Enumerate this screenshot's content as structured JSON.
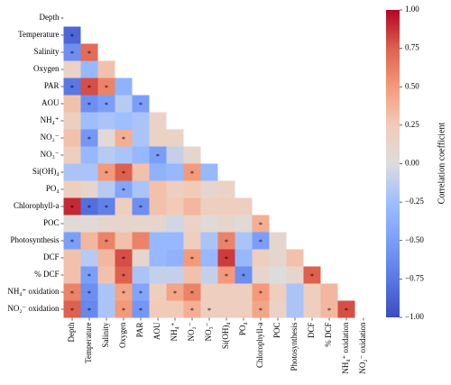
{
  "chart_data": {
    "type": "heatmap",
    "categories": [
      "Depth",
      "Temperature",
      "Salinity",
      "Oxygen",
      "PAR",
      "AOU",
      "NH₄⁺",
      "NO₂⁻",
      "NO₃⁻",
      "Si(OH)₄",
      "PO₄",
      "Chlorophyll-a",
      "POC",
      "Photosynthesis",
      "DCF",
      "% DCF",
      "NH₄⁺ oxidation",
      "NO₂⁻ oxidation"
    ],
    "values": [
      [],
      [
        -0.85
      ],
      [
        -0.6,
        0.7
      ],
      [
        0.15,
        -0.3,
        0.3
      ],
      [
        -0.75,
        0.8,
        0.6,
        -0.35
      ],
      [
        0.3,
        -0.6,
        -0.5,
        -0.15,
        -0.5
      ],
      [
        0.2,
        -0.25,
        -0.2,
        -0.25,
        -0.2,
        0.15
      ],
      [
        0.3,
        -0.55,
        0.05,
        0.4,
        -0.2,
        0.15,
        0.15
      ],
      [
        0.2,
        -0.3,
        -0.15,
        -0.2,
        -0.3,
        -0.5,
        -0.1,
        0.1
      ],
      [
        -0.2,
        -0.2,
        0.5,
        0.75,
        0.3,
        -0.35,
        -0.3,
        0.5,
        -0.3
      ],
      [
        0.2,
        0.1,
        -0.15,
        -0.45,
        -0.2,
        0.3,
        0.2,
        0.25,
        0.1,
        0.15
      ],
      [
        0.9,
        -0.8,
        -0.7,
        0.2,
        -0.6,
        0.3,
        0.25,
        0.35,
        0.2,
        0.2,
        0.2
      ],
      [
        0.05,
        0.05,
        0.1,
        0.1,
        0.1,
        0.1,
        -0.05,
        0.15,
        0.05,
        0.1,
        0.05,
        0.4
      ],
      [
        -0.5,
        0.35,
        0.6,
        0.3,
        0.6,
        -0.3,
        -0.3,
        0.2,
        -0.2,
        0.6,
        -0.2,
        -0.5,
        0.1
      ],
      [
        0.3,
        -0.15,
        0.35,
        0.8,
        0.1,
        -0.3,
        -0.35,
        0.5,
        -0.3,
        0.85,
        -0.3,
        0.2,
        0.1,
        0.3
      ],
      [
        0.3,
        -0.5,
        0.3,
        0.75,
        -0.2,
        -0.1,
        -0.1,
        0.3,
        -0.1,
        0.5,
        -0.6,
        0.1,
        0.0,
        0.1,
        0.75
      ],
      [
        0.6,
        -0.6,
        -0.2,
        0.45,
        -0.45,
        0.2,
        0.45,
        0.6,
        0.2,
        0.2,
        0.2,
        0.5,
        0.2,
        -0.2,
        0.2,
        0.35
      ],
      [
        0.75,
        -0.65,
        -0.2,
        0.5,
        -0.55,
        0.25,
        0.25,
        0.4,
        0.2,
        0.2,
        0.2,
        0.45,
        0.15,
        -0.2,
        0.2,
        0.35,
        0.8
      ]
    ],
    "significant": [
      [],
      [
        true
      ],
      [
        true,
        true
      ],
      [
        false,
        false,
        false
      ],
      [
        true,
        true,
        true,
        false
      ],
      [
        false,
        true,
        true,
        false,
        true
      ],
      [
        false,
        false,
        false,
        false,
        false,
        false
      ],
      [
        false,
        true,
        false,
        true,
        false,
        false,
        false
      ],
      [
        false,
        false,
        false,
        false,
        false,
        true,
        false,
        false
      ],
      [
        false,
        false,
        true,
        true,
        false,
        false,
        false,
        true,
        false
      ],
      [
        false,
        false,
        false,
        true,
        false,
        false,
        false,
        false,
        false,
        false
      ],
      [
        true,
        true,
        true,
        false,
        true,
        false,
        false,
        false,
        false,
        false,
        false
      ],
      [
        false,
        false,
        false,
        false,
        false,
        false,
        false,
        false,
        false,
        false,
        false,
        true
      ],
      [
        true,
        false,
        true,
        false,
        false,
        false,
        false,
        false,
        false,
        true,
        false,
        true,
        false
      ],
      [
        false,
        false,
        false,
        true,
        false,
        false,
        false,
        true,
        false,
        true,
        false,
        false,
        false,
        false
      ],
      [
        false,
        true,
        false,
        true,
        false,
        false,
        false,
        false,
        false,
        true,
        true,
        false,
        false,
        false,
        true
      ],
      [
        true,
        true,
        false,
        true,
        true,
        false,
        true,
        true,
        false,
        false,
        false,
        true,
        false,
        false,
        false,
        false
      ],
      [
        true,
        true,
        false,
        true,
        true,
        false,
        false,
        true,
        true,
        false,
        false,
        true,
        false,
        false,
        false,
        true,
        true
      ]
    ],
    "significance_marker": "*",
    "colormap": [
      "#3b4cc0",
      "#5a78e4",
      "#7b9ff9",
      "#9ebeff",
      "#dddcdc",
      "#f2cbb7",
      "#f49a7b",
      "#de604d",
      "#b40426"
    ],
    "clim": [
      -1,
      1
    ],
    "colorbar_label": "Correlation coefficient",
    "colorbar_ticks": [
      {
        "value": -1,
        "label": "−1.00"
      },
      {
        "value": -0.75,
        "label": "−0.75"
      },
      {
        "value": -0.5,
        "label": "−0.50"
      },
      {
        "value": -0.25,
        "label": "−0.25"
      },
      {
        "value": 0,
        "label": "0.00"
      },
      {
        "value": 0.25,
        "label": "0.25"
      },
      {
        "value": 0.5,
        "label": "0.50"
      },
      {
        "value": 0.75,
        "label": "0.75"
      },
      {
        "value": 1,
        "label": "1.00"
      }
    ]
  }
}
